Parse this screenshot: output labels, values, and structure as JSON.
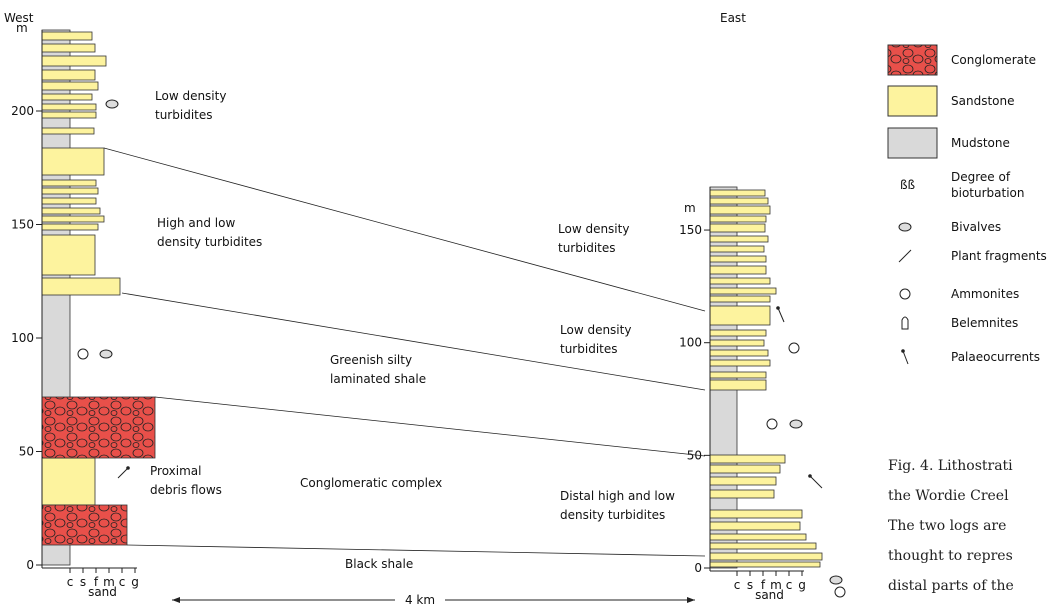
{
  "west": {
    "title": "West",
    "unit": "m",
    "ticks": [
      0,
      50,
      100,
      150,
      200
    ],
    "grain_sizes": [
      "c",
      "s",
      "f",
      "m",
      "c",
      "g"
    ],
    "grain_label": "sand"
  },
  "east": {
    "title": "East",
    "unit": "m",
    "ticks": [
      0,
      50,
      100,
      150
    ],
    "grain_sizes": [
      "c",
      "s",
      "f",
      "m",
      "c",
      "g"
    ],
    "grain_label": "sand"
  },
  "annotations": [
    {
      "lines": [
        "Low density",
        "turbidites"
      ]
    },
    {
      "lines": [
        "High and low",
        "density turbidites"
      ]
    },
    {
      "lines": [
        "Greenish silty",
        "laminated shale"
      ]
    },
    {
      "lines": [
        "Proximal",
        "debris flows"
      ]
    },
    {
      "lines": [
        "Conglomeratic complex"
      ]
    },
    {
      "lines": [
        "Black shale"
      ]
    },
    {
      "lines": [
        "Low density",
        "turbidites"
      ]
    },
    {
      "lines": [
        "Low density",
        "turbidites"
      ]
    },
    {
      "lines": [
        "Distal high  and low",
        "density turbidites"
      ]
    }
  ],
  "scale_bar": "4 km",
  "legend": [
    {
      "lines": [
        "Conglomerate"
      ]
    },
    {
      "lines": [
        "Sandstone"
      ]
    },
    {
      "lines": [
        "Mudstone"
      ]
    },
    {
      "lines": [
        "Degree of",
        "bioturbation"
      ]
    },
    {
      "lines": [
        "Bivalves"
      ]
    },
    {
      "lines": [
        "Plant fragments"
      ]
    },
    {
      "lines": [
        "Ammonites"
      ]
    },
    {
      "lines": [
        "Belemnites"
      ]
    },
    {
      "lines": [
        "Palaeocurrents"
      ]
    }
  ],
  "caption": [
    "Fig. 4. Lithostrati",
    "the Wordie Creel",
    "The two logs are",
    "thought to repres",
    "distal parts of the"
  ]
}
